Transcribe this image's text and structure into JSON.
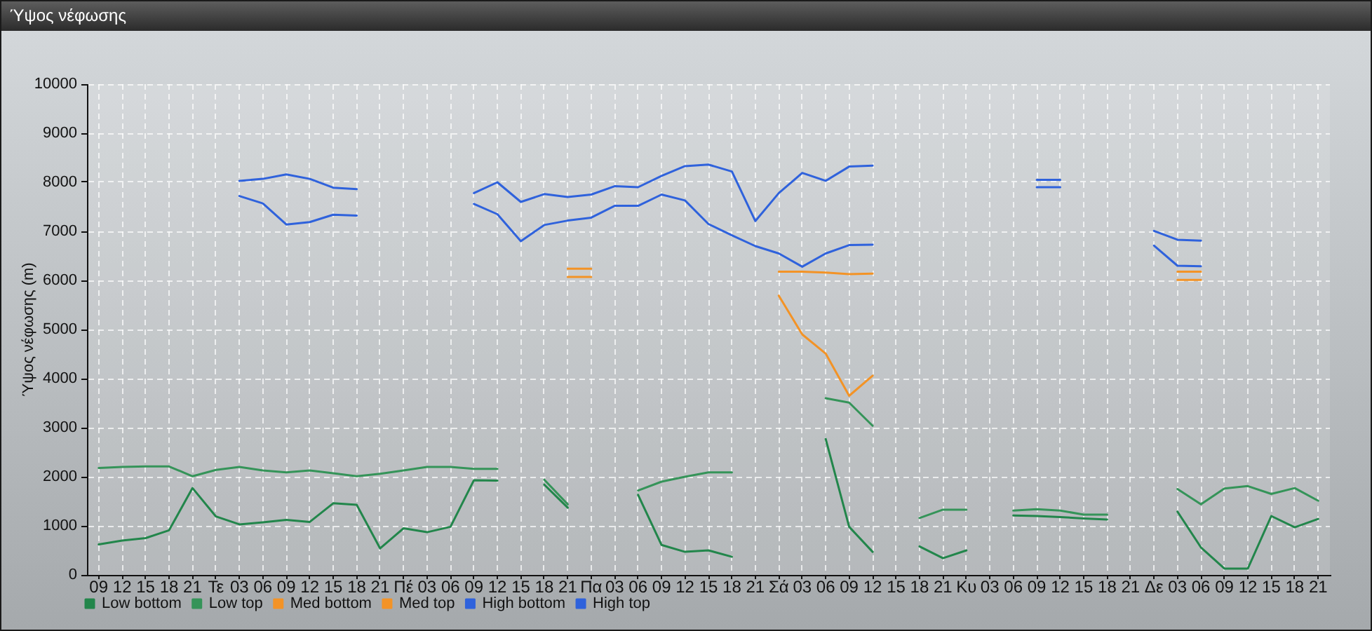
{
  "chart_data": {
    "type": "line",
    "title": "Ύψος νέφωσης",
    "ylabel": "Ύψος νέφωσης (m)",
    "categories": [
      "09",
      "12",
      "15",
      "18",
      "21",
      "Τε",
      "03",
      "06",
      "09",
      "12",
      "15",
      "18",
      "21",
      "Πέ",
      "03",
      "06",
      "09",
      "12",
      "15",
      "18",
      "21",
      "Πα",
      "03",
      "06",
      "09",
      "12",
      "15",
      "18",
      "21",
      "Σά",
      "03",
      "06",
      "09",
      "12",
      "15",
      "18",
      "21",
      "Κυ",
      "03",
      "06",
      "09",
      "12",
      "15",
      "18",
      "21",
      "Δε",
      "03",
      "06",
      "09",
      "12",
      "15",
      "18",
      "21"
    ],
    "series": [
      {
        "name": "Low bottom",
        "color": "#22864b",
        "values": [
          620,
          700,
          750,
          910,
          1770,
          1190,
          1030,
          1070,
          1120,
          1080,
          1460,
          1430,
          540,
          950,
          870,
          980,
          1930,
          1920,
          null,
          1840,
          1370,
          null,
          null,
          1630,
          610,
          470,
          500,
          370,
          null,
          null,
          null,
          2770,
          980,
          470,
          null,
          580,
          340,
          500,
          null,
          1210,
          1200,
          1180,
          1150,
          1130,
          null,
          null,
          1290,
          560,
          130,
          130,
          1200,
          970,
          1140
        ]
      },
      {
        "name": "Low top",
        "color": "#359459",
        "values": [
          2180,
          2200,
          2210,
          2210,
          2010,
          2140,
          2200,
          2130,
          2090,
          2130,
          2070,
          2010,
          2060,
          2130,
          2200,
          2200,
          2160,
          2160,
          null,
          1940,
          1440,
          null,
          null,
          1720,
          1900,
          2000,
          2090,
          2090,
          null,
          null,
          null,
          3600,
          3510,
          3040,
          null,
          1160,
          1330,
          1330,
          null,
          1310,
          1340,
          1310,
          1230,
          1230,
          null,
          null,
          1750,
          1440,
          1760,
          1810,
          1650,
          1770,
          1510
        ]
      },
      {
        "name": "Med bottom",
        "color": "#f39326",
        "values": [
          null,
          null,
          null,
          null,
          null,
          null,
          null,
          null,
          null,
          null,
          null,
          null,
          null,
          null,
          null,
          null,
          null,
          null,
          null,
          null,
          6070,
          6070,
          null,
          null,
          null,
          null,
          null,
          null,
          null,
          5690,
          4900,
          4510,
          3650,
          4060,
          null,
          null,
          null,
          null,
          null,
          null,
          null,
          null,
          null,
          null,
          null,
          null,
          6010,
          6010,
          null,
          null,
          null,
          null,
          null
        ]
      },
      {
        "name": "Med top",
        "color": "#f39326",
        "values": [
          null,
          null,
          null,
          null,
          null,
          null,
          null,
          null,
          null,
          null,
          null,
          null,
          null,
          null,
          null,
          null,
          null,
          null,
          null,
          null,
          6240,
          6240,
          null,
          null,
          null,
          null,
          null,
          null,
          null,
          6180,
          6180,
          6160,
          6130,
          6140,
          null,
          null,
          null,
          null,
          null,
          null,
          null,
          null,
          null,
          null,
          null,
          null,
          6180,
          6180,
          null,
          null,
          null,
          null,
          null
        ]
      },
      {
        "name": "High bottom",
        "color": "#2f62dc",
        "values": [
          null,
          null,
          null,
          null,
          null,
          null,
          7720,
          7570,
          7140,
          7190,
          7340,
          7320,
          null,
          null,
          null,
          null,
          7560,
          7350,
          6800,
          7130,
          7220,
          7280,
          7520,
          7520,
          7750,
          7630,
          7150,
          6920,
          6700,
          6550,
          6280,
          6550,
          6720,
          6730,
          null,
          null,
          null,
          null,
          null,
          null,
          7900,
          7900,
          null,
          null,
          null,
          6710,
          6300,
          6290,
          null,
          null,
          null,
          null,
          null
        ]
      },
      {
        "name": "High top",
        "color": "#2f62dc",
        "values": [
          null,
          null,
          null,
          null,
          null,
          null,
          8030,
          8070,
          8160,
          8070,
          7890,
          7860,
          null,
          null,
          null,
          null,
          7780,
          8000,
          7600,
          7760,
          7700,
          7750,
          7920,
          7900,
          8130,
          8330,
          8360,
          8220,
          7210,
          7780,
          8190,
          8030,
          8320,
          8340,
          null,
          null,
          null,
          null,
          null,
          null,
          8050,
          8050,
          null,
          null,
          null,
          7010,
          6830,
          6810,
          null,
          null,
          null,
          null,
          null
        ]
      }
    ],
    "ylim": [
      0,
      10000
    ],
    "yticks": [
      0,
      1000,
      2000,
      3000,
      4000,
      5000,
      6000,
      7000,
      8000,
      9000,
      10000
    ],
    "grid": true,
    "legend": "bottom left",
    "marker": "none",
    "line_style": "solid"
  }
}
